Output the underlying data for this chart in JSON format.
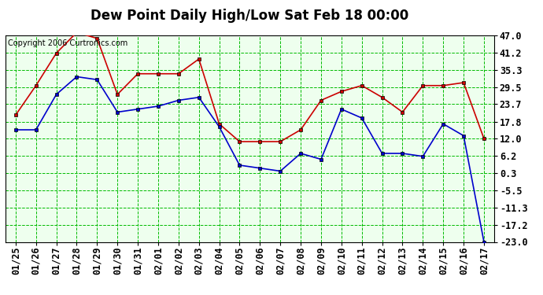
{
  "title": "Dew Point Daily High/Low Sat Feb 18 00:00",
  "copyright": "Copyright 2006 Curtronics.com",
  "dates": [
    "01/25",
    "01/26",
    "01/27",
    "01/28",
    "01/29",
    "01/30",
    "01/31",
    "02/01",
    "02/02",
    "02/03",
    "02/04",
    "02/05",
    "02/06",
    "02/07",
    "02/08",
    "02/09",
    "02/10",
    "02/11",
    "02/12",
    "02/13",
    "02/14",
    "02/15",
    "02/16",
    "02/17"
  ],
  "high": [
    20,
    30,
    41,
    48,
    46,
    27,
    34,
    34,
    34,
    39,
    17,
    11,
    11,
    11,
    15,
    25,
    28,
    30,
    26,
    21,
    30,
    30,
    31,
    12
  ],
  "low": [
    15,
    15,
    27,
    33,
    32,
    21,
    22,
    23,
    25,
    26,
    16,
    3,
    2,
    1,
    7,
    5,
    22,
    19,
    7,
    7,
    6,
    17,
    13,
    -23
  ],
  "yticks": [
    47.0,
    41.2,
    35.3,
    29.5,
    23.7,
    17.8,
    12.0,
    6.2,
    0.3,
    -5.5,
    -11.3,
    -17.2,
    -23.0
  ],
  "ytick_labels": [
    "47.0",
    "41.2",
    "35.3",
    "29.5",
    "23.7",
    "17.8",
    "12.0",
    "6.2",
    "0.3",
    "-5.5",
    "-11.3",
    "-17.2",
    "-23.0"
  ],
  "ymin": -23.0,
  "ymax": 47.0,
  "bg_color": "#ffffff",
  "plot_bg_color": "#eeffee",
  "grid_color": "#00bb00",
  "high_color": "#cc0000",
  "low_color": "#0000cc",
  "marker": "s",
  "marker_size": 3,
  "title_fontsize": 12,
  "tick_fontsize": 8.5,
  "copyright_fontsize": 7
}
